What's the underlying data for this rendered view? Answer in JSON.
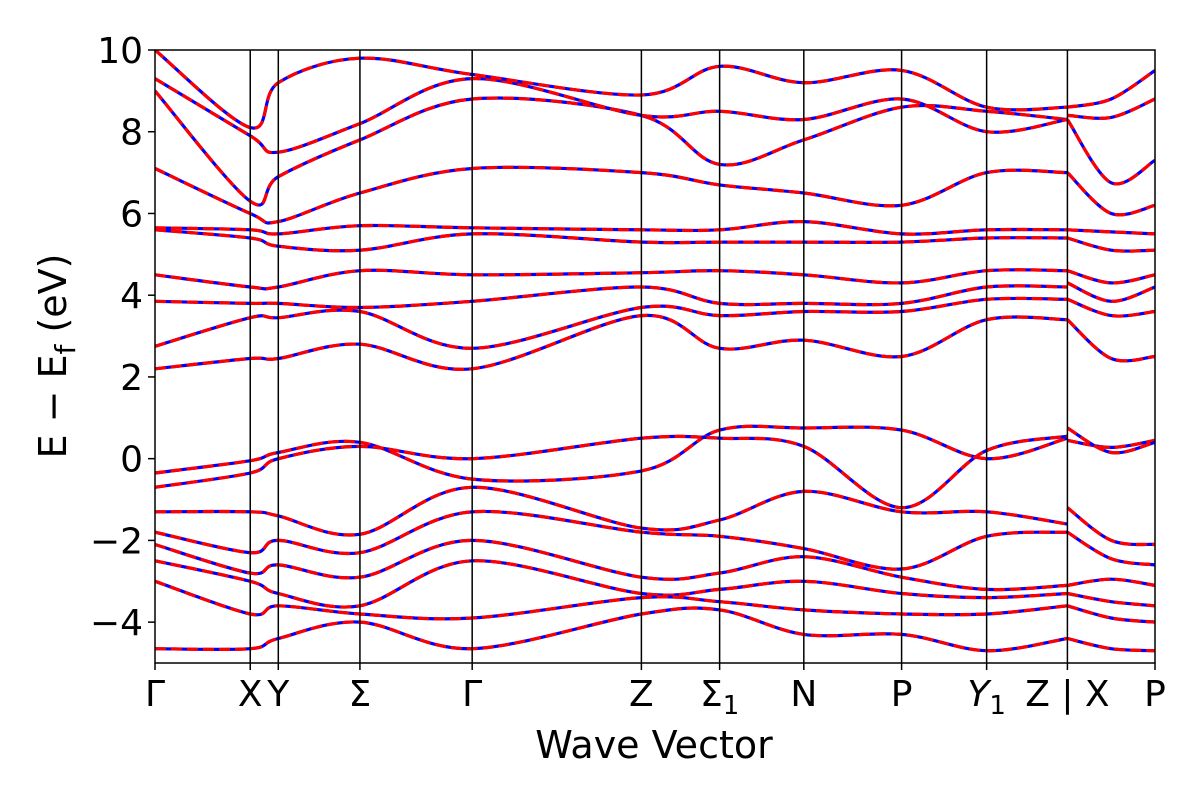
{
  "chart_data": {
    "type": "line",
    "xlabel": "Wave Vector",
    "ylabel": "E − E_f (eV)",
    "ylim": [
      -5,
      10
    ],
    "yticks": [
      -4,
      -2,
      0,
      2,
      4,
      6,
      8,
      10
    ],
    "ytick_labels": [
      "−4",
      "−2",
      "0",
      "2",
      "4",
      "6",
      "8",
      "10"
    ],
    "xlim": [
      0,
      11.76
    ],
    "grid": false,
    "legend": "none",
    "kpoints": [
      {
        "label": "Γ",
        "x": 0.0
      },
      {
        "label": "X",
        "x": 1.12
      },
      {
        "label": "Y",
        "x": 1.45
      },
      {
        "label": "Σ",
        "x": 2.41
      },
      {
        "label": "Γ",
        "x": 3.73
      },
      {
        "label": "Z",
        "x": 5.72
      },
      {
        "label": "Σ",
        "sub": "1",
        "x": 6.64
      },
      {
        "label": "N",
        "x": 7.63
      },
      {
        "label": "P",
        "x": 8.78
      },
      {
        "label": "Y",
        "sub": "1",
        "italic": true,
        "x": 9.78
      },
      {
        "label": "Z | X",
        "x": 10.73
      },
      {
        "label": "P",
        "x": 11.76
      }
    ],
    "segment_break_x": 10.73,
    "series_styles": [
      {
        "color": "#0000ff",
        "style": "solid"
      },
      {
        "color": "#ff0000",
        "style": "dashed"
      }
    ],
    "bands": [
      [
        -0.35,
        -0.05,
        0.15,
        0.4,
        -0.5,
        -0.3,
        0.7,
        0.75,
        0.7,
        0.0,
        0.5,
        0.45,
        0.1,
        0.45
      ],
      [
        -0.7,
        -0.35,
        0.0,
        0.3,
        0.0,
        0.5,
        0.5,
        0.3,
        -1.2,
        0.2,
        0.55,
        0.75,
        -0.1,
        0.4
      ],
      [
        -1.3,
        -1.3,
        -1.4,
        -1.85,
        -0.7,
        -1.7,
        -1.5,
        -0.8,
        -1.3,
        -1.3,
        -1.6,
        -1.2,
        -1.9,
        -2.1
      ],
      [
        -1.8,
        -2.3,
        -2.0,
        -2.3,
        -1.3,
        -1.8,
        -1.9,
        -2.2,
        -2.7,
        -1.9,
        -1.8,
        -1.8,
        -2.3,
        -2.6
      ],
      [
        -2.1,
        -2.8,
        -2.6,
        -2.9,
        -2.0,
        -2.9,
        -2.8,
        -2.4,
        -2.9,
        -3.2,
        -3.1,
        -3.1,
        -2.8,
        -3.1
      ],
      [
        -2.5,
        -3.0,
        -3.3,
        -3.6,
        -2.5,
        -3.3,
        -3.2,
        -3.0,
        -3.3,
        -3.4,
        -3.3,
        -3.3,
        -3.4,
        -3.6
      ],
      [
        -3.0,
        -3.8,
        -3.6,
        -3.8,
        -3.9,
        -3.4,
        -3.5,
        -3.7,
        -3.8,
        -3.8,
        -3.6,
        -3.6,
        -3.8,
        -4.0
      ],
      [
        -4.65,
        -4.65,
        -4.4,
        -4.0,
        -4.65,
        -3.8,
        -3.7,
        -4.3,
        -4.3,
        -4.7,
        -4.4,
        -4.4,
        -4.6,
        -4.7
      ],
      [
        2.2,
        2.45,
        2.45,
        2.8,
        2.2,
        3.5,
        2.7,
        2.9,
        2.5,
        3.4,
        3.4,
        3.4,
        2.4,
        2.5
      ],
      [
        2.75,
        3.45,
        3.45,
        3.6,
        2.7,
        3.7,
        3.5,
        3.6,
        3.6,
        3.9,
        3.9,
        3.9,
        3.4,
        3.6
      ],
      [
        3.85,
        3.8,
        3.8,
        3.7,
        3.85,
        4.2,
        3.8,
        3.8,
        3.8,
        4.2,
        4.2,
        4.3,
        3.5,
        4.2
      ],
      [
        4.5,
        4.2,
        4.2,
        4.6,
        4.5,
        4.55,
        4.6,
        4.5,
        4.3,
        4.6,
        4.6,
        4.6,
        4.1,
        4.5
      ],
      [
        5.6,
        5.4,
        5.2,
        5.1,
        5.5,
        5.3,
        5.3,
        5.3,
        5.3,
        5.4,
        5.4,
        5.4,
        5.1,
        5.1
      ],
      [
        5.65,
        5.6,
        5.5,
        5.7,
        5.65,
        5.6,
        5.6,
        5.8,
        5.5,
        5.6,
        5.6,
        5.6,
        5.6,
        5.5
      ],
      [
        7.1,
        6.0,
        5.8,
        6.5,
        7.1,
        7.0,
        6.7,
        6.5,
        6.2,
        7.0,
        7.0,
        7.0,
        5.8,
        6.2
      ],
      [
        9.0,
        6.3,
        6.9,
        7.8,
        8.8,
        8.4,
        7.2,
        7.8,
        8.6,
        8.5,
        8.3,
        8.3,
        6.2,
        7.3
      ],
      [
        9.3,
        7.9,
        7.5,
        8.2,
        9.3,
        8.4,
        8.5,
        8.3,
        8.8,
        8.0,
        8.3,
        8.4,
        7.9,
        8.8
      ],
      [
        10.0,
        8.1,
        9.2,
        9.8,
        9.4,
        8.9,
        9.6,
        9.2,
        9.5,
        8.6,
        8.6,
        8.6,
        8.1,
        9.5
      ]
    ]
  }
}
